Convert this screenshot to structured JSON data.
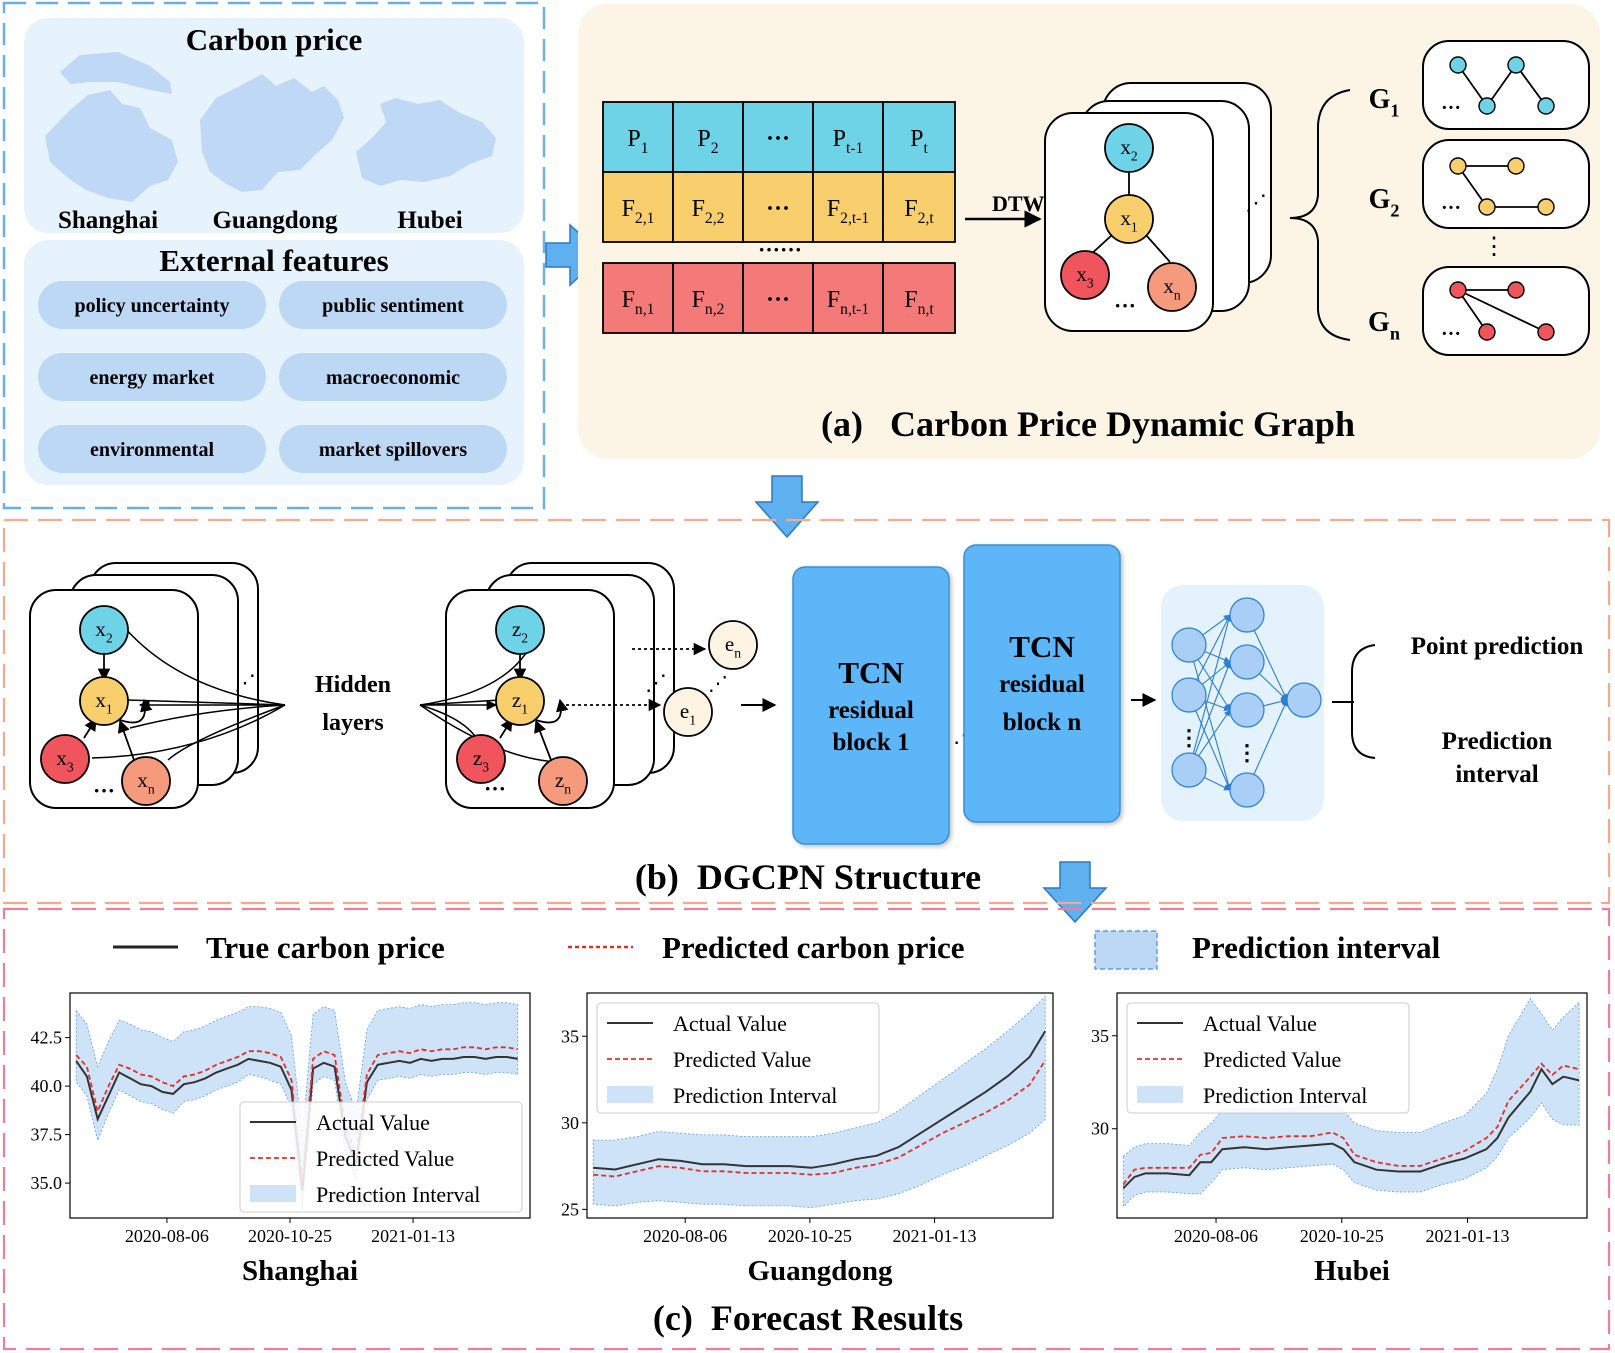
{
  "source": {
    "carbon_price_title": "Carbon price",
    "regions": [
      "Shanghai",
      "Guangdong",
      "Hubei"
    ],
    "external_title": "External features",
    "features": [
      "policy uncertainty",
      "public sentiment",
      "energy market",
      "macroeconomic",
      "environmental",
      "market spillovers"
    ]
  },
  "panel_a": {
    "caption": "(a)   Carbon Price Dynamic Graph",
    "dtw_label": "DTW",
    "matrix": {
      "rows": [
        {
          "color": "#6fd3e8",
          "cells": [
            [
              "P",
              "1"
            ],
            [
              "P",
              "2"
            ],
            [
              "···",
              ""
            ],
            [
              "P",
              "t-1"
            ],
            [
              "P",
              "t"
            ]
          ]
        },
        {
          "color": "#f9cf6e",
          "cells": [
            [
              "F",
              "2,1"
            ],
            [
              "F",
              "2,2"
            ],
            [
              "···",
              ""
            ],
            [
              "F",
              "2,t-1"
            ],
            [
              "F",
              "2,t"
            ]
          ]
        },
        {
          "color": "#f47a7a",
          "cells": [
            [
              "F",
              "n,1"
            ],
            [
              "F",
              "n,2"
            ],
            [
              "···",
              ""
            ],
            [
              "F",
              "n,t-1"
            ],
            [
              "F",
              "n,t"
            ]
          ]
        }
      ],
      "ellipsis": "······"
    },
    "graph_nodes": [
      [
        "x",
        "2"
      ],
      [
        "x",
        "1"
      ],
      [
        "x",
        "3"
      ],
      [
        "x",
        "n"
      ]
    ],
    "node_ellipsis": "···",
    "stack_ellipsis": "⋰",
    "graph_labels": [
      [
        "G",
        "1"
      ],
      [
        "G",
        "2"
      ],
      [
        "G",
        "n"
      ]
    ],
    "graph_vdots": "⋮",
    "sub_ellipsis": "···"
  },
  "panel_b": {
    "caption": "(b)  DGCPN Structure",
    "input_nodes": [
      [
        "x",
        "2"
      ],
      [
        "x",
        "1"
      ],
      [
        "x",
        "3"
      ],
      [
        "x",
        "n"
      ]
    ],
    "hidden_label": [
      "Hidden",
      "layers"
    ],
    "hidden_nodes": [
      [
        "z",
        "2"
      ],
      [
        "z",
        "1"
      ],
      [
        "z",
        "3"
      ],
      [
        "z",
        "n"
      ]
    ],
    "embed_nodes": [
      [
        "e",
        "n"
      ],
      [
        "e",
        "1"
      ]
    ],
    "ellipsis": "···",
    "stack_ellipsis": "⋰",
    "tcn_block1": [
      "TCN",
      "residual",
      "block 1"
    ],
    "tcn_blockn": [
      "TCN",
      "residual",
      "block n"
    ],
    "tcn_dots": "⋰",
    "mlp_dots": "⋮",
    "outputs": [
      "Point prediction",
      "Prediction",
      "interval"
    ]
  },
  "panel_c": {
    "caption": "(c)  Forecast Results",
    "legend": [
      "True carbon price",
      "Predicted carbon price",
      "Prediction interval"
    ],
    "colors": {
      "actual": "#333333",
      "predicted": "#e0302a",
      "interval": "#cfe3f8",
      "interval_edge": "#5aa0e0"
    }
  },
  "chart_data": [
    {
      "type": "line",
      "title": "Shanghai",
      "x_ticks": [
        "2020-08-06",
        "2020-10-25",
        "2021-01-13"
      ],
      "y_ticks": [
        "35.0",
        "37.5",
        "40.0",
        "42.5"
      ],
      "xlim": [
        "2020-06-04",
        "2021-03-30"
      ],
      "ylim": [
        33.2,
        44.8
      ],
      "legend": {
        "entries": [
          "Actual Value",
          "Predicted Value",
          "Prediction Interval"
        ],
        "position": "lower-right"
      },
      "x": [
        "2020-06-08",
        "2020-06-15",
        "2020-06-22",
        "2020-06-29",
        "2020-07-06",
        "2020-07-13",
        "2020-07-20",
        "2020-07-27",
        "2020-08-03",
        "2020-08-10",
        "2020-08-17",
        "2020-08-24",
        "2020-08-31",
        "2020-09-07",
        "2020-09-14",
        "2020-09-21",
        "2020-09-28",
        "2020-10-05",
        "2020-10-12",
        "2020-10-19",
        "2020-10-26",
        "2020-11-02",
        "2020-11-09",
        "2020-11-16",
        "2020-11-23",
        "2020-11-30",
        "2020-12-07",
        "2020-12-14",
        "2020-12-21",
        "2020-12-28",
        "2021-01-04",
        "2021-01-11",
        "2021-01-18",
        "2021-01-25",
        "2021-02-01",
        "2021-02-08",
        "2021-02-15",
        "2021-02-22",
        "2021-03-01",
        "2021-03-08",
        "2021-03-15",
        "2021-03-22"
      ],
      "series": [
        {
          "name": "Actual Value",
          "values": [
            41.3,
            40.5,
            38.3,
            39.5,
            40.7,
            40.4,
            40.1,
            40.0,
            39.7,
            39.6,
            40.1,
            40.2,
            40.4,
            40.7,
            40.9,
            41.1,
            41.4,
            41.3,
            41.2,
            41.0,
            39.8,
            34.6,
            40.9,
            41.2,
            41.0,
            37.4,
            36.0,
            40.2,
            41.1,
            41.2,
            41.3,
            41.2,
            41.4,
            41.3,
            41.4,
            41.4,
            41.5,
            41.5,
            41.4,
            41.5,
            41.5,
            41.4
          ]
        },
        {
          "name": "Predicted Value",
          "values": [
            41.6,
            41.0,
            38.7,
            40.0,
            41.1,
            40.9,
            40.6,
            40.5,
            40.2,
            40.0,
            40.5,
            40.6,
            40.8,
            41.1,
            41.3,
            41.5,
            41.8,
            41.8,
            41.7,
            41.5,
            40.3,
            35.1,
            41.4,
            41.8,
            41.6,
            37.9,
            36.4,
            40.6,
            41.6,
            41.7,
            41.8,
            41.7,
            41.9,
            41.8,
            41.9,
            41.9,
            42.0,
            42.0,
            41.9,
            42.0,
            42.0,
            41.9
          ]
        },
        {
          "name": "Prediction Interval (lower)",
          "values": [
            40.2,
            39.5,
            37.2,
            38.6,
            39.8,
            39.5,
            39.2,
            39.1,
            38.8,
            38.6,
            39.2,
            39.3,
            39.5,
            39.8,
            40.0,
            40.2,
            40.6,
            40.5,
            40.3,
            40.1,
            38.9,
            33.6,
            40.1,
            40.5,
            40.3,
            36.6,
            35.1,
            39.3,
            40.3,
            40.4,
            40.5,
            40.4,
            40.6,
            40.5,
            40.6,
            40.6,
            40.7,
            40.7,
            40.6,
            40.7,
            40.7,
            40.6
          ]
        },
        {
          "name": "Prediction Interval (upper)",
          "values": [
            43.9,
            43.2,
            41.0,
            42.3,
            43.4,
            43.2,
            42.9,
            42.8,
            42.5,
            42.3,
            42.8,
            42.9,
            43.1,
            43.4,
            43.6,
            43.8,
            44.1,
            44.1,
            44.0,
            43.8,
            42.6,
            37.4,
            43.7,
            44.1,
            43.9,
            40.2,
            38.7,
            42.9,
            43.9,
            44.0,
            44.1,
            44.0,
            44.2,
            44.1,
            44.2,
            44.2,
            44.3,
            44.3,
            44.2,
            44.3,
            44.3,
            44.2
          ]
        }
      ]
    },
    {
      "type": "line",
      "title": "Guangdong",
      "x_ticks": [
        "2020-08-06",
        "2020-10-25",
        "2021-01-13"
      ],
      "y_ticks": [
        "25",
        "30",
        "35"
      ],
      "xlim": [
        "2020-06-04",
        "2021-03-30"
      ],
      "ylim": [
        24.5,
        37.5
      ],
      "legend": {
        "entries": [
          "Actual Value",
          "Predicted Value",
          "Prediction Interval"
        ],
        "position": "upper-left"
      },
      "x": [
        "2020-06-08",
        "2020-06-22",
        "2020-07-06",
        "2020-07-20",
        "2020-08-03",
        "2020-08-17",
        "2020-08-31",
        "2020-09-14",
        "2020-09-28",
        "2020-10-12",
        "2020-10-26",
        "2020-11-09",
        "2020-11-23",
        "2020-12-07",
        "2020-12-21",
        "2021-01-04",
        "2021-01-18",
        "2021-02-01",
        "2021-02-15",
        "2021-03-01",
        "2021-03-15",
        "2021-03-25"
      ],
      "series": [
        {
          "name": "Actual Value",
          "values": [
            27.4,
            27.3,
            27.6,
            27.9,
            27.8,
            27.6,
            27.6,
            27.5,
            27.5,
            27.5,
            27.4,
            27.6,
            27.9,
            28.1,
            28.6,
            29.4,
            30.2,
            31.0,
            31.8,
            32.7,
            33.8,
            35.3
          ]
        },
        {
          "name": "Predicted Value",
          "values": [
            27.0,
            26.9,
            27.2,
            27.5,
            27.4,
            27.2,
            27.2,
            27.1,
            27.1,
            27.1,
            27.0,
            27.1,
            27.4,
            27.6,
            28.0,
            28.7,
            29.4,
            30.0,
            30.6,
            31.3,
            32.2,
            33.6
          ]
        },
        {
          "name": "Prediction Interval (lower)",
          "values": [
            25.3,
            25.2,
            25.4,
            25.5,
            25.4,
            25.3,
            25.3,
            25.2,
            25.2,
            25.2,
            25.1,
            25.3,
            25.5,
            25.6,
            25.9,
            26.4,
            27.0,
            27.5,
            28.1,
            28.7,
            29.4,
            30.2
          ]
        },
        {
          "name": "Prediction Interval (upper)",
          "values": [
            29.0,
            29.0,
            29.2,
            29.5,
            29.4,
            29.3,
            29.3,
            29.2,
            29.2,
            29.2,
            29.2,
            29.4,
            29.7,
            30.0,
            30.7,
            31.6,
            32.5,
            33.4,
            34.3,
            35.3,
            36.4,
            37.3
          ]
        }
      ]
    },
    {
      "type": "line",
      "title": "Hubei",
      "x_ticks": [
        "2020-08-06",
        "2020-10-25",
        "2021-01-13"
      ],
      "y_ticks": [
        "30",
        "35"
      ],
      "xlim": [
        "2020-06-04",
        "2021-03-30"
      ],
      "ylim": [
        25.2,
        37.3
      ],
      "legend": {
        "entries": [
          "Actual Value",
          "Predicted Value",
          "Prediction Interval"
        ],
        "position": "upper-left"
      },
      "x": [
        "2020-06-08",
        "2020-06-15",
        "2020-06-22",
        "2020-07-06",
        "2020-07-20",
        "2020-07-27",
        "2020-08-03",
        "2020-08-10",
        "2020-08-24",
        "2020-09-07",
        "2020-09-21",
        "2020-10-05",
        "2020-10-19",
        "2020-10-26",
        "2020-11-02",
        "2020-11-16",
        "2020-11-30",
        "2020-12-14",
        "2020-12-28",
        "2021-01-11",
        "2021-01-25",
        "2021-02-01",
        "2021-02-08",
        "2021-02-22",
        "2021-03-01",
        "2021-03-08",
        "2021-03-15",
        "2021-03-25"
      ],
      "series": [
        {
          "name": "Actual Value",
          "values": [
            26.8,
            27.4,
            27.6,
            27.6,
            27.5,
            28.2,
            28.2,
            28.9,
            29.0,
            28.9,
            29.0,
            29.1,
            29.2,
            28.9,
            28.2,
            27.8,
            27.7,
            27.7,
            28.1,
            28.4,
            28.9,
            29.5,
            30.6,
            32.0,
            33.2,
            32.4,
            32.8,
            32.6
          ]
        },
        {
          "name": "Predicted Value",
          "values": [
            27.0,
            27.8,
            27.9,
            27.9,
            27.9,
            28.6,
            28.7,
            29.5,
            29.6,
            29.5,
            29.6,
            29.6,
            29.8,
            29.5,
            28.6,
            28.2,
            28.0,
            28.0,
            28.4,
            28.8,
            29.5,
            30.1,
            31.5,
            32.8,
            33.5,
            32.9,
            33.4,
            33.2
          ]
        },
        {
          "name": "Prediction Interval (lower)",
          "values": [
            25.8,
            26.4,
            26.6,
            26.6,
            26.5,
            26.5,
            27.1,
            27.8,
            27.9,
            27.8,
            27.9,
            28.0,
            28.1,
            27.8,
            27.1,
            26.7,
            26.6,
            26.6,
            27.0,
            27.3,
            27.9,
            28.5,
            29.5,
            30.6,
            31.4,
            30.5,
            30.2,
            30.2
          ]
        },
        {
          "name": "Prediction Interval (upper)",
          "values": [
            28.5,
            29.0,
            29.2,
            29.2,
            29.1,
            29.8,
            30.3,
            31.0,
            31.1,
            31.0,
            31.1,
            31.2,
            31.3,
            31.0,
            30.3,
            29.9,
            29.8,
            29.8,
            30.3,
            30.7,
            31.9,
            33.2,
            35.0,
            37.0,
            36.2,
            35.3,
            36.0,
            36.8
          ]
        }
      ]
    }
  ]
}
